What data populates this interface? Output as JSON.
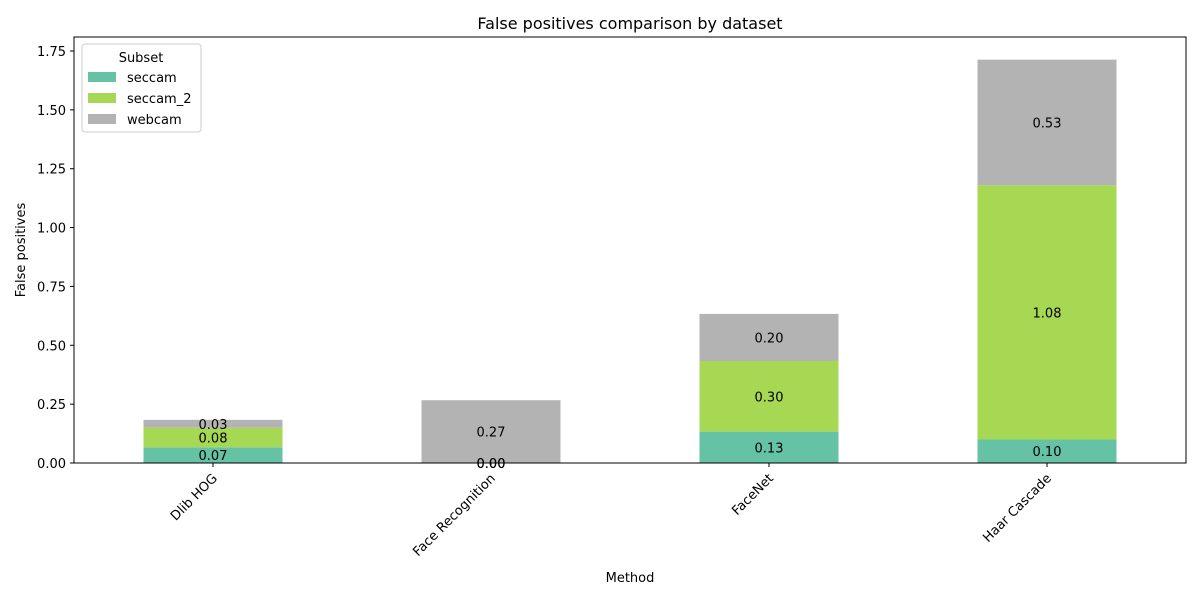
{
  "chart_data": {
    "type": "bar",
    "stacked": true,
    "title": "False positives comparison by dataset",
    "xlabel": "Method",
    "ylabel": "False positives",
    "categories": [
      "Dlib HOG",
      "Face Recognition",
      "FaceNet",
      "Haar Cascade"
    ],
    "series": [
      {
        "name": "seccam",
        "color": "#66c2a5",
        "values": [
          0.0667,
          0.0,
          0.1333,
          0.1
        ],
        "labels": [
          "0.07",
          "0.00",
          "0.13",
          "0.10"
        ]
      },
      {
        "name": "seccam_2",
        "color": "#a6d854",
        "values": [
          0.0833,
          0.0,
          0.3,
          1.08
        ],
        "labels": [
          "0.08",
          "0.00",
          "0.30",
          "1.08"
        ]
      },
      {
        "name": "webcam",
        "color": "#b3b3b3",
        "values": [
          0.0333,
          0.2667,
          0.2,
          0.5333
        ],
        "labels": [
          "0.03",
          "0.27",
          "0.20",
          "0.53"
        ]
      }
    ],
    "ylim": [
      0,
      1.8
    ],
    "yticks": [
      0.0,
      0.25,
      0.5,
      0.75,
      1.0,
      1.25,
      1.5,
      1.75
    ],
    "ytick_labels": [
      "0.00",
      "0.25",
      "0.50",
      "0.75",
      "1.00",
      "1.25",
      "1.50",
      "1.75"
    ],
    "grid": false,
    "legend": {
      "title": "Subset",
      "position": "top-left"
    }
  }
}
